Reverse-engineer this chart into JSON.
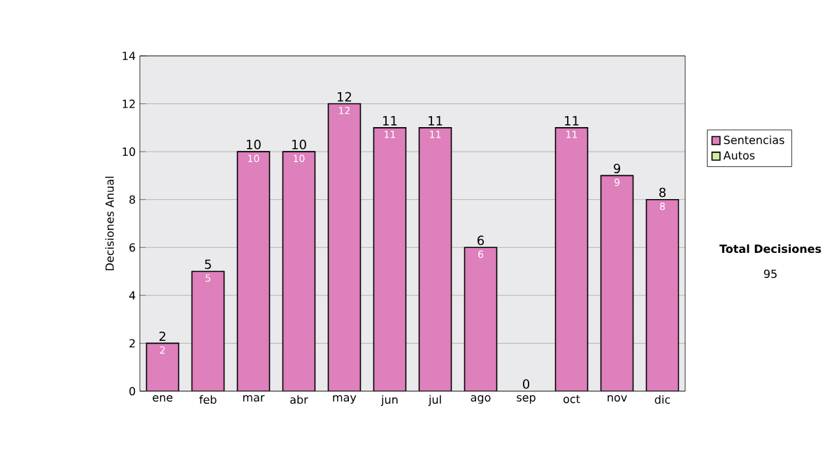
{
  "chart_data": {
    "type": "bar",
    "stacked": true,
    "categories": [
      "ene",
      "feb",
      "mar",
      "abr",
      "may",
      "jun",
      "jul",
      "ago",
      "sep",
      "oct",
      "nov",
      "dic"
    ],
    "series": [
      {
        "name": "Sentencias",
        "color": "#dd80bb",
        "values": [
          2,
          5,
          10,
          10,
          12,
          11,
          11,
          6,
          0,
          11,
          9,
          8
        ],
        "value_labels": [
          "2",
          "5",
          "10",
          "10",
          "12",
          "11",
          "11",
          "6",
          null,
          "11",
          "9",
          "8"
        ]
      },
      {
        "name": "Autos",
        "color": "#d6eca0",
        "values": [
          0,
          0,
          0,
          0,
          0,
          0,
          0,
          0,
          0,
          0,
          0,
          0
        ]
      }
    ],
    "totals": [
      "2",
      "5",
      "10",
      "10",
      "12",
      "11",
      "11",
      "6",
      "0",
      "11",
      "9",
      "8"
    ],
    "ylabel": "Decisiones Anual",
    "ylim": [
      0,
      14
    ],
    "yticks": [
      0,
      2,
      4,
      6,
      8,
      10,
      12,
      14
    ],
    "grid": "y",
    "legend": "right",
    "annotations": [
      "**Total Decisiones**",
      "95"
    ]
  }
}
